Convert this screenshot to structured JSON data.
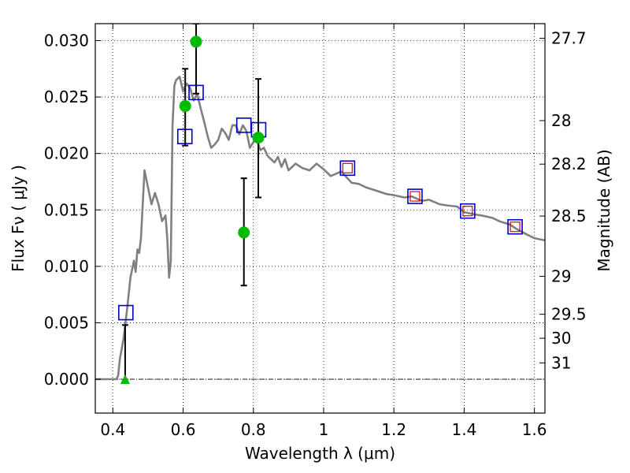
{
  "chart_data": {
    "type": "scatter",
    "title": "",
    "xlabel": "Wavelength  λ (μm)",
    "ylabel": "Flux  Fν  ( μJy )",
    "y2label": "Magnitude (AB)",
    "xlim": [
      0.35,
      1.63
    ],
    "ylim": [
      -0.003,
      0.0315
    ],
    "grid": true,
    "x_ticks": [
      0.4,
      0.6,
      0.8,
      1.0,
      1.2,
      1.4,
      1.6
    ],
    "x_tick_labels": [
      "0.4",
      "0.6",
      "0.8",
      "1",
      "1.2",
      "1.4",
      "1.6"
    ],
    "y_ticks": [
      0.0,
      0.005,
      0.01,
      0.015,
      0.02,
      0.025,
      0.03
    ],
    "y_tick_labels": [
      "0.000",
      "0.005",
      "0.010",
      "0.015",
      "0.020",
      "0.025",
      "0.030"
    ],
    "mag_ticks": [
      {
        "mag": 27.7,
        "label": "27.7"
      },
      {
        "mag": 28,
        "label": "28"
      },
      {
        "mag": 28.2,
        "label": "28.2"
      },
      {
        "mag": 28.5,
        "label": "28.5"
      },
      {
        "mag": 29,
        "label": "29"
      },
      {
        "mag": 29.5,
        "label": "29.5"
      },
      {
        "mag": 30,
        "label": "30"
      },
      {
        "mag": 31,
        "label": "31"
      }
    ],
    "colors": {
      "model": "#808080",
      "observed": "#00bb00",
      "model_box": "#0000cc",
      "model_box_inner": "#dd0000",
      "errorbar": "#000000",
      "zero_line": "#000000"
    },
    "series": [
      {
        "kind": "model_sed",
        "x": [
          0.35,
          0.41,
          0.415,
          0.42,
          0.43,
          0.44,
          0.45,
          0.46,
          0.465,
          0.47,
          0.475,
          0.48,
          0.49,
          0.5,
          0.51,
          0.52,
          0.53,
          0.54,
          0.55,
          0.555,
          0.56,
          0.565,
          0.57,
          0.575,
          0.58,
          0.59,
          0.6,
          0.61,
          0.62,
          0.63,
          0.64,
          0.65,
          0.66,
          0.67,
          0.68,
          0.69,
          0.7,
          0.71,
          0.72,
          0.73,
          0.74,
          0.75,
          0.76,
          0.77,
          0.78,
          0.79,
          0.8,
          0.81,
          0.82,
          0.83,
          0.84,
          0.85,
          0.86,
          0.87,
          0.88,
          0.89,
          0.9,
          0.92,
          0.94,
          0.96,
          0.98,
          1.0,
          1.02,
          1.05,
          1.08,
          1.1,
          1.12,
          1.15,
          1.18,
          1.2,
          1.23,
          1.25,
          1.28,
          1.3,
          1.33,
          1.35,
          1.38,
          1.4,
          1.43,
          1.45,
          1.48,
          1.5,
          1.53,
          1.55,
          1.58,
          1.6,
          1.63
        ],
        "y": [
          0.0,
          0.0,
          0.0003,
          0.0018,
          0.0035,
          0.006,
          0.009,
          0.0105,
          0.0095,
          0.0115,
          0.0112,
          0.0125,
          0.0185,
          0.017,
          0.0155,
          0.0165,
          0.0155,
          0.014,
          0.0145,
          0.0125,
          0.009,
          0.0105,
          0.0225,
          0.026,
          0.0265,
          0.0268,
          0.0255,
          0.0262,
          0.0258,
          0.0247,
          0.0253,
          0.024,
          0.0228,
          0.0215,
          0.0205,
          0.0208,
          0.0212,
          0.0222,
          0.0218,
          0.0212,
          0.0225,
          0.0225,
          0.0217,
          0.0225,
          0.022,
          0.0205,
          0.021,
          0.0212,
          0.0203,
          0.0205,
          0.0198,
          0.0195,
          0.0192,
          0.0197,
          0.0188,
          0.0195,
          0.0185,
          0.0191,
          0.0187,
          0.0185,
          0.0191,
          0.0186,
          0.018,
          0.0184,
          0.0174,
          0.0173,
          0.017,
          0.0167,
          0.0164,
          0.0163,
          0.0161,
          0.0162,
          0.0158,
          0.0159,
          0.0155,
          0.0154,
          0.0153,
          0.0148,
          0.0146,
          0.0145,
          0.0143,
          0.014,
          0.0137,
          0.0133,
          0.0128,
          0.0125,
          0.0123
        ]
      },
      {
        "kind": "model_photometry",
        "points": [
          {
            "x": 0.437,
            "y": 0.0059,
            "inner": false
          },
          {
            "x": 0.605,
            "y": 0.0215,
            "inner": false
          },
          {
            "x": 0.637,
            "y": 0.0254,
            "inner": false
          },
          {
            "x": 0.773,
            "y": 0.0225,
            "inner": false
          },
          {
            "x": 0.815,
            "y": 0.0221,
            "inner": false
          },
          {
            "x": 1.068,
            "y": 0.0187,
            "inner": true
          },
          {
            "x": 1.26,
            "y": 0.0162,
            "inner": true
          },
          {
            "x": 1.41,
            "y": 0.0149,
            "inner": true
          },
          {
            "x": 1.545,
            "y": 0.0135,
            "inner": true
          }
        ]
      },
      {
        "kind": "observed",
        "points": [
          {
            "x": 0.606,
            "y": 0.0242,
            "ylo": 0.0207,
            "yhi": 0.0275
          },
          {
            "x": 0.637,
            "y": 0.0299,
            "ylo": 0.0253,
            "yhi": 0.0315
          },
          {
            "x": 0.773,
            "y": 0.013,
            "ylo": 0.0083,
            "yhi": 0.0178
          },
          {
            "x": 0.814,
            "y": 0.0214,
            "ylo": 0.0161,
            "yhi": 0.0266
          }
        ]
      },
      {
        "kind": "upper_limit",
        "points": [
          {
            "x": 0.435,
            "y": 0.0,
            "ylo": 0.0,
            "yhi": 0.0048
          }
        ]
      }
    ]
  }
}
